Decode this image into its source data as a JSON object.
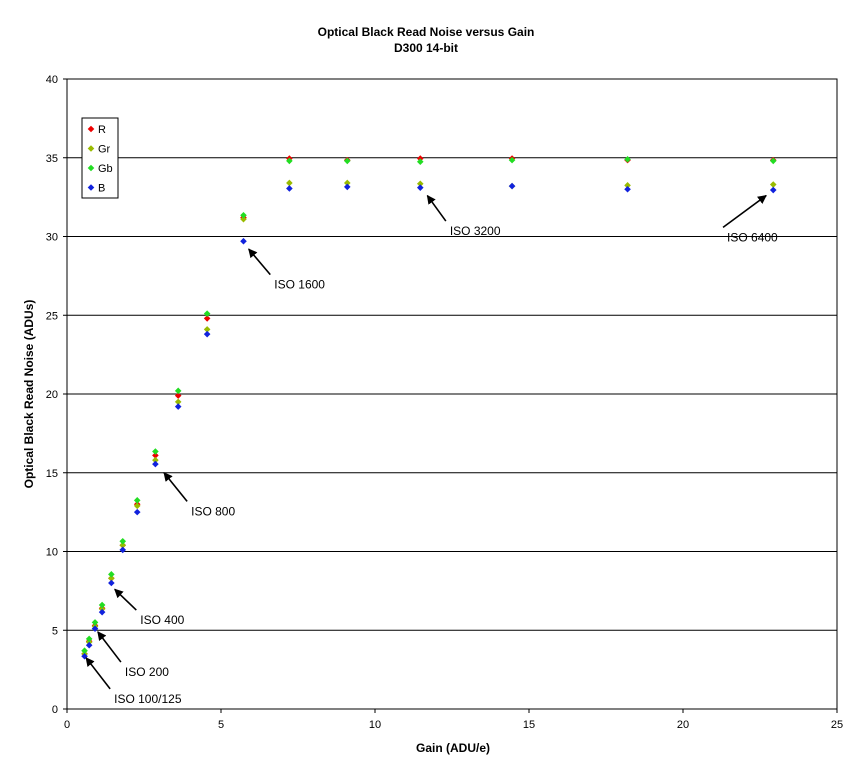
{
  "chart_data": {
    "type": "scatter",
    "title": "Optical Black Read Noise versus Gain",
    "subtitle": "D300 14-bit",
    "xlabel": "Gain (ADU/e)",
    "ylabel": "Optical Black Read Noise (ADUs)",
    "xlim": [
      0,
      25
    ],
    "ylim": [
      0,
      40
    ],
    "xticks": [
      0,
      5,
      10,
      15,
      20,
      25
    ],
    "yticks": [
      0,
      5,
      10,
      15,
      20,
      25,
      30,
      35,
      40
    ],
    "grid": "horizontal major",
    "legend_position": "top-left",
    "series": [
      {
        "name": "R",
        "color": "#ee0000",
        "x": [
          0.57,
          0.72,
          0.91,
          1.14,
          1.44,
          1.81,
          2.28,
          2.87,
          3.61,
          4.55,
          5.73,
          7.22,
          9.1,
          11.47,
          14.45,
          18.2,
          22.93
        ],
        "y": [
          3.5,
          4.3,
          5.3,
          6.4,
          8.3,
          10.4,
          13.0,
          16.1,
          19.9,
          24.8,
          31.2,
          34.95,
          34.85,
          34.95,
          34.95,
          34.85,
          34.85
        ]
      },
      {
        "name": "Gr",
        "color": "#99bb00",
        "x": [
          0.57,
          0.72,
          0.91,
          1.14,
          1.44,
          1.81,
          2.28,
          2.87,
          3.61,
          4.55,
          5.73,
          7.22,
          9.1,
          11.47,
          14.45,
          18.2,
          22.93
        ],
        "y": [
          3.5,
          4.25,
          5.25,
          6.35,
          8.3,
          10.4,
          12.9,
          15.8,
          19.5,
          24.1,
          31.1,
          33.4,
          33.4,
          33.35,
          33.2,
          33.25,
          33.3
        ]
      },
      {
        "name": "Gb",
        "color": "#22dd22",
        "x": [
          0.57,
          0.72,
          0.91,
          1.14,
          1.44,
          1.81,
          2.28,
          2.87,
          3.61,
          4.55,
          5.73,
          7.22,
          9.1,
          11.47,
          14.45,
          18.2,
          22.93
        ],
        "y": [
          3.7,
          4.45,
          5.5,
          6.6,
          8.55,
          10.65,
          13.25,
          16.35,
          20.2,
          25.1,
          31.35,
          34.8,
          34.8,
          34.75,
          34.85,
          34.9,
          34.8
        ]
      },
      {
        "name": "B",
        "color": "#1122dd",
        "x": [
          0.57,
          0.72,
          0.91,
          1.14,
          1.44,
          1.81,
          2.28,
          2.87,
          3.61,
          4.55,
          5.73,
          7.22,
          9.1,
          11.47,
          14.45,
          18.2,
          22.93
        ],
        "y": [
          3.35,
          4.05,
          5.1,
          6.15,
          8.0,
          10.1,
          12.5,
          15.55,
          19.2,
          23.8,
          29.7,
          33.05,
          33.15,
          33.1,
          33.2,
          33.0,
          32.95
        ]
      }
    ],
    "annotations": [
      {
        "text": "ISO 100/125",
        "point": [
          0.62,
          3.25
        ],
        "label_at": [
          1.4,
          0.9
        ]
      },
      {
        "text": "ISO 200",
        "point": [
          1.0,
          4.9
        ],
        "label_at": [
          1.75,
          2.6
        ]
      },
      {
        "text": "ISO 400",
        "point": [
          1.55,
          7.6
        ],
        "label_at": [
          2.25,
          5.9
        ]
      },
      {
        "text": "ISO 800",
        "point": [
          3.15,
          15.0
        ],
        "label_at": [
          3.9,
          12.8
        ]
      },
      {
        "text": "ISO 1600",
        "point": [
          5.9,
          29.2
        ],
        "label_at": [
          6.6,
          27.2
        ]
      },
      {
        "text": "ISO 3200",
        "point": [
          11.7,
          32.6
        ],
        "label_at": [
          12.3,
          30.6
        ]
      },
      {
        "text": "ISO 6400",
        "point": [
          22.7,
          32.6
        ],
        "label_at": [
          21.3,
          30.2
        ]
      }
    ]
  }
}
